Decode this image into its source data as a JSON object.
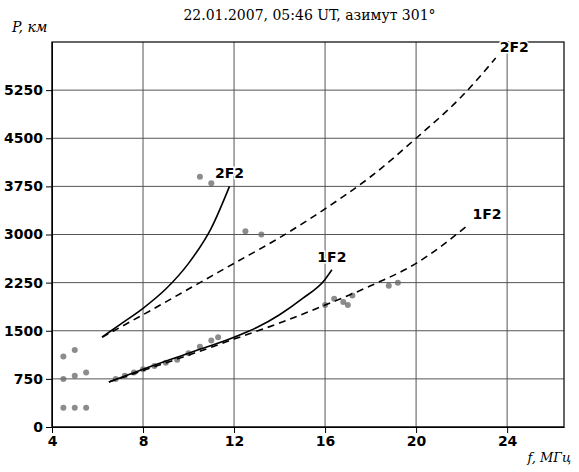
{
  "chart_data": {
    "type": "line",
    "title": "22.01.2007, 05:46 UT, азимут 301°",
    "xlabel": "f, МГц",
    "ylabel": "P, км",
    "xlim": [
      4,
      26.5
    ],
    "ylim": [
      0,
      6000
    ],
    "xticks": [
      4,
      8,
      12,
      16,
      20,
      24
    ],
    "yticks": [
      0,
      750,
      1500,
      2250,
      3000,
      3750,
      4500,
      5250
    ],
    "grid": true,
    "series": [
      {
        "type": "scatter",
        "color": "#666666",
        "marker": "circle",
        "x": [
          4.5,
          5,
          5.5,
          4.5,
          5,
          5.5,
          4.5,
          5,
          6.8,
          7.2,
          7.6,
          8,
          8.5,
          9,
          9.5,
          10,
          10.5,
          11,
          11.3,
          16,
          16.4,
          16.8,
          17.2,
          17,
          18.8,
          19.2,
          10.5,
          11,
          12.5,
          13.2
        ],
        "values": [
          300,
          300,
          300,
          750,
          800,
          850,
          1100,
          1200,
          750,
          800,
          850,
          900,
          950,
          1000,
          1050,
          1150,
          1250,
          1350,
          1400,
          1900,
          2000,
          1950,
          2050,
          1900,
          2200,
          2250,
          3900,
          3800,
          3050,
          3000
        ]
      },
      {
        "name": "2F2",
        "type": "line",
        "color": "#000000",
        "line_style": "solid",
        "x": [
          6.2,
          7,
          8,
          9,
          10,
          11,
          11.8
        ],
        "values": [
          1400,
          1600,
          1850,
          2150,
          2550,
          3100,
          3750
        ]
      },
      {
        "name": "2F2",
        "type": "line",
        "color": "#000000",
        "line_style": "dashed",
        "x": [
          6.2,
          8,
          10,
          12,
          14,
          16,
          18,
          20,
          22,
          23.5
        ],
        "values": [
          1400,
          1750,
          2150,
          2550,
          2950,
          3400,
          3900,
          4500,
          5150,
          5750
        ]
      },
      {
        "name": "1F2",
        "type": "line",
        "color": "#000000",
        "line_style": "solid",
        "x": [
          6.5,
          8,
          10,
          12,
          13,
          14,
          15,
          16,
          16.3
        ],
        "values": [
          700,
          900,
          1150,
          1400,
          1550,
          1750,
          2000,
          2300,
          2450
        ]
      },
      {
        "name": "1F2",
        "type": "line",
        "color": "#000000",
        "line_style": "dashed",
        "x": [
          6.5,
          8,
          10,
          12,
          14,
          16,
          18,
          20,
          22.3
        ],
        "values": [
          700,
          880,
          1120,
          1370,
          1620,
          1900,
          2200,
          2550,
          3150
        ]
      }
    ]
  }
}
